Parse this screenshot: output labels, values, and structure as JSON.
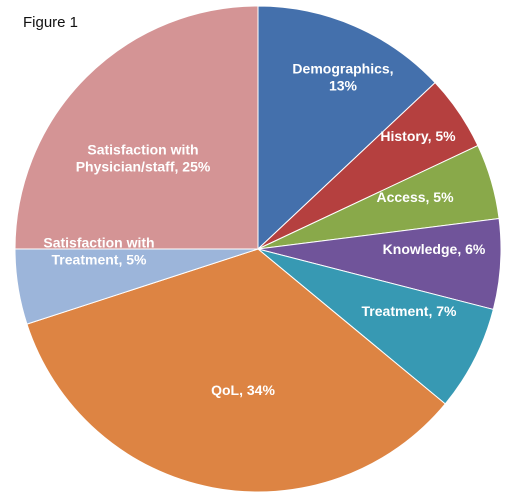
{
  "figure_label": "Figure 1",
  "chart_data": {
    "type": "pie",
    "start_angle_deg": 0,
    "direction": "clockwise",
    "slices": [
      {
        "name": "Demographics",
        "value": 13,
        "color": "#4470AC",
        "label_lines": [
          "Demographics,",
          "13%"
        ]
      },
      {
        "name": "History",
        "value": 5,
        "color": "#B5403F",
        "label_lines": [
          "History, 5%"
        ]
      },
      {
        "name": "Access",
        "value": 5,
        "color": "#89A94A",
        "label_lines": [
          "Access, 5%"
        ]
      },
      {
        "name": "Knowledge",
        "value": 6,
        "color": "#70549A",
        "label_lines": [
          "Knowledge, 6%"
        ]
      },
      {
        "name": "Treatment",
        "value": 7,
        "color": "#3799B3",
        "label_lines": [
          "Treatment, 7%"
        ]
      },
      {
        "name": "QoL",
        "value": 34,
        "color": "#DD8443",
        "label_lines": [
          "QoL, 34%"
        ]
      },
      {
        "name": "Satisfaction with Treatment",
        "value": 5,
        "color": "#9CB5DA",
        "label_lines": [
          "Satisfaction with",
          "Treatment, 5%"
        ]
      },
      {
        "name": "Satisfaction with Physician/staff",
        "value": 25,
        "color": "#D49495",
        "label_lines": [
          "Satisfaction with",
          "Physician/staff, 25%"
        ]
      }
    ]
  }
}
